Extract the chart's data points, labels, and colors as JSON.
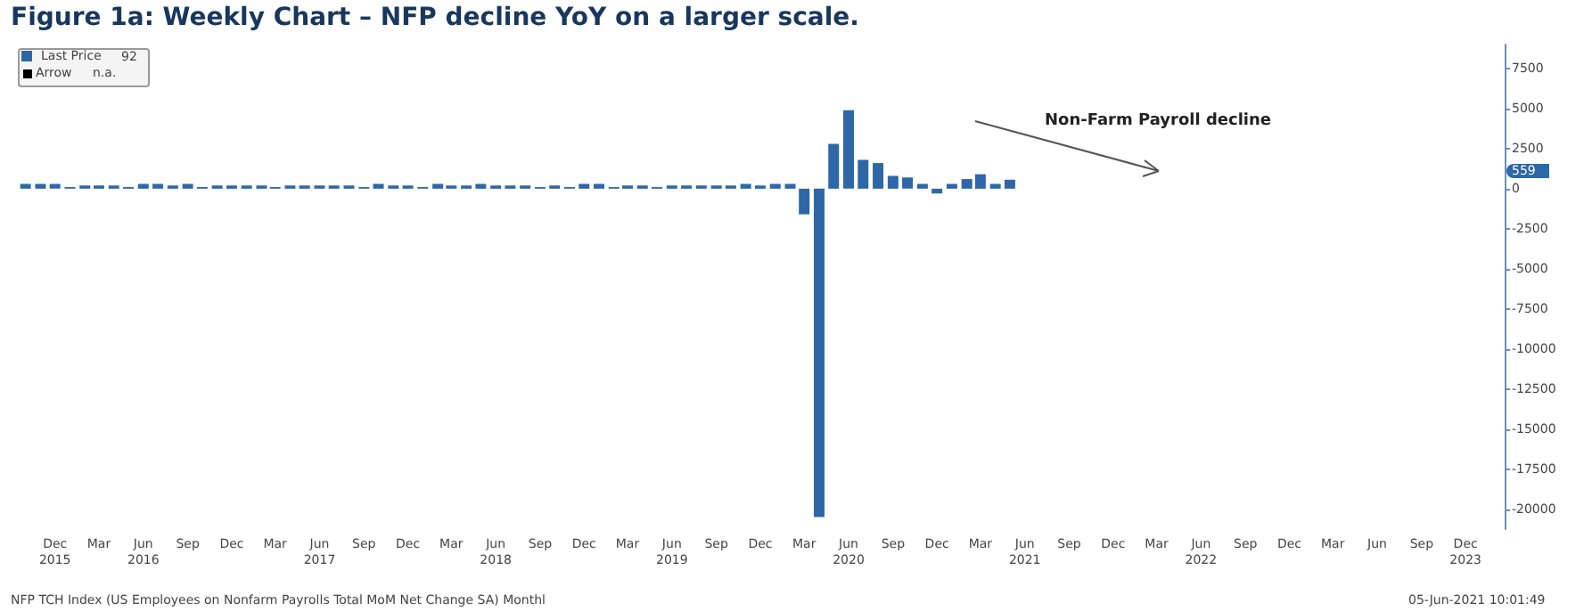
{
  "chart_data": {
    "type": "bar",
    "title": "Figure 1a: Weekly Chart – NFP decline YoY on a larger scale.",
    "x": [
      "2015-10",
      "2015-11",
      "2015-12",
      "2016-01",
      "2016-02",
      "2016-03",
      "2016-04",
      "2016-05",
      "2016-06",
      "2016-07",
      "2016-08",
      "2016-09",
      "2016-10",
      "2016-11",
      "2016-12",
      "2017-01",
      "2017-02",
      "2017-03",
      "2017-04",
      "2017-05",
      "2017-06",
      "2017-07",
      "2017-08",
      "2017-09",
      "2017-10",
      "2017-11",
      "2017-12",
      "2018-01",
      "2018-02",
      "2018-03",
      "2018-04",
      "2018-05",
      "2018-06",
      "2018-07",
      "2018-08",
      "2018-09",
      "2018-10",
      "2018-11",
      "2018-12",
      "2019-01",
      "2019-02",
      "2019-03",
      "2019-04",
      "2019-05",
      "2019-06",
      "2019-07",
      "2019-08",
      "2019-09",
      "2019-10",
      "2019-11",
      "2019-12",
      "2020-01",
      "2020-02",
      "2020-03",
      "2020-04",
      "2020-05",
      "2020-06",
      "2020-07",
      "2020-08",
      "2020-09",
      "2020-10",
      "2020-11",
      "2020-12",
      "2021-01",
      "2021-02",
      "2021-03",
      "2021-04",
      "2021-05"
    ],
    "series": [
      {
        "name": "Last Price",
        "color": "#2e67a8",
        "values": [
          300,
          300,
          300,
          100,
          200,
          200,
          200,
          100,
          300,
          300,
          200,
          300,
          100,
          200,
          200,
          200,
          200,
          100,
          200,
          200,
          200,
          200,
          200,
          100,
          300,
          200,
          200,
          100,
          300,
          200,
          200,
          300,
          200,
          200,
          200,
          100,
          200,
          100,
          300,
          300,
          100,
          200,
          200,
          100,
          200,
          200,
          200,
          200,
          200,
          300,
          200,
          300,
          300,
          -1600,
          -20500,
          2800,
          4900,
          1800,
          1600,
          800,
          700,
          300,
          -300,
          300,
          600,
          900,
          300,
          559
        ]
      }
    ],
    "xlim": [
      "2015-09-15",
      "2024-02-20"
    ],
    "xticks": [
      {
        "value": "2015-12",
        "label": "Dec\n2015"
      },
      {
        "value": "2016-03",
        "label": "Mar"
      },
      {
        "value": "2016-06",
        "label": "Jun\n2016"
      },
      {
        "value": "2016-09",
        "label": "Sep"
      },
      {
        "value": "2016-12",
        "label": "Dec"
      },
      {
        "value": "2017-03",
        "label": "Mar"
      },
      {
        "value": "2017-06",
        "label": "Jun\n2017"
      },
      {
        "value": "2017-09",
        "label": "Sep"
      },
      {
        "value": "2017-12",
        "label": "Dec"
      },
      {
        "value": "2018-03",
        "label": "Mar"
      },
      {
        "value": "2018-06",
        "label": "Jun\n2018"
      },
      {
        "value": "2018-09",
        "label": "Sep"
      },
      {
        "value": "2018-12",
        "label": "Dec"
      },
      {
        "value": "2019-03",
        "label": "Mar"
      },
      {
        "value": "2019-06",
        "label": "Jun\n2019"
      },
      {
        "value": "2019-09",
        "label": "Sep"
      },
      {
        "value": "2019-12",
        "label": "Dec"
      },
      {
        "value": "2020-03",
        "label": "Mar"
      },
      {
        "value": "2020-06",
        "label": "Jun\n2020"
      },
      {
        "value": "2020-09",
        "label": "Sep"
      },
      {
        "value": "2020-12",
        "label": "Dec"
      },
      {
        "value": "2021-03",
        "label": "Mar"
      },
      {
        "value": "2021-06",
        "label": "Jun\n2021"
      },
      {
        "value": "2021-09",
        "label": "Sep"
      },
      {
        "value": "2021-12",
        "label": "Dec"
      },
      {
        "value": "2022-03",
        "label": "Mar"
      },
      {
        "value": "2022-06",
        "label": "Jun\n2022"
      },
      {
        "value": "2022-09",
        "label": "Sep"
      },
      {
        "value": "2022-12",
        "label": "Dec"
      },
      {
        "value": "2023-03",
        "label": "Mar"
      },
      {
        "value": "2023-06",
        "label": "Jun"
      },
      {
        "value": "2023-09",
        "label": "Sep"
      },
      {
        "value": "2023-12",
        "label": "Dec\n2023"
      }
    ],
    "ylim": [
      -21250,
      9000
    ],
    "yticks": [
      -20000,
      -17500,
      -15000,
      -12500,
      -10000,
      -7500,
      -5000,
      -2500,
      0,
      2500,
      5000,
      7500
    ],
    "grid": false,
    "legend": "top left",
    "annotations": [
      "92",
      "Arrow",
      "n.a.",
      "Non-Farm Payroll decline",
      "559",
      "NFP TCH Index (US Employees on Nonfarm Payrolls Total MoM Net Change SA)  Monthl",
      "05-Jun-2021 10:01:49"
    ]
  }
}
